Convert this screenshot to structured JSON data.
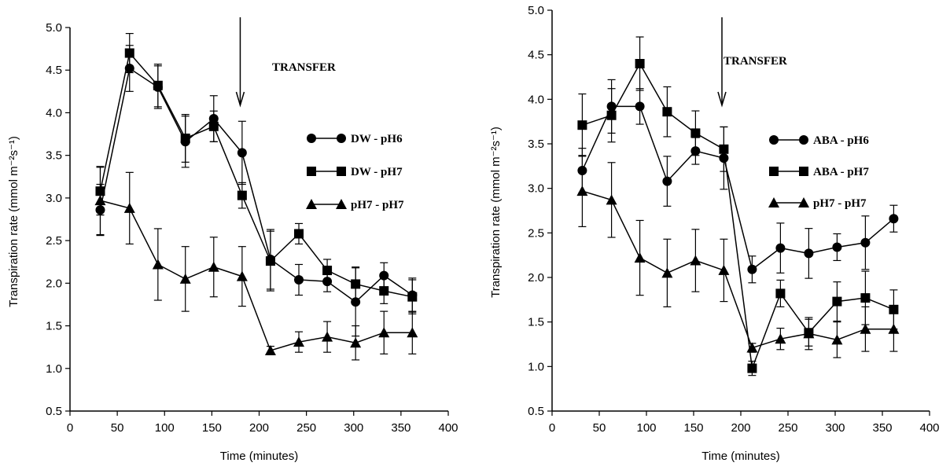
{
  "chart_data": [
    {
      "type": "line",
      "xlabel": "Time (minutes)",
      "ylabel": "Transpiration rate (mmol m⁻²s⁻¹)",
      "xlim": [
        0,
        400
      ],
      "ylim": [
        0.5,
        5.0
      ],
      "xticks": [
        "0",
        "50",
        "100",
        "150",
        "200",
        "250",
        "300",
        "350",
        "400"
      ],
      "yticks": [
        "0.5",
        "1.0",
        "1.5",
        "2.0",
        "2.5",
        "3.0",
        "3.5",
        "4.0",
        "4.5",
        "5.0"
      ],
      "annotation": {
        "text": "TRANSFER",
        "arrow_x": 180
      },
      "legend_position": "right",
      "x": [
        32,
        63,
        93,
        122,
        152,
        182,
        212,
        242,
        272,
        302,
        332,
        362
      ],
      "series": [
        {
          "name": "DW - pH6",
          "marker": "circle",
          "values": [
            2.86,
            4.52,
            4.3,
            3.66,
            3.93,
            3.53,
            2.28,
            2.04,
            2.02,
            1.78,
            2.09,
            1.86
          ],
          "errors": [
            0.3,
            0.27,
            0.25,
            0.3,
            0.27,
            0.37,
            0.35,
            0.18,
            0.12,
            0.4,
            0.15,
            0.2
          ]
        },
        {
          "name": "DW - pH7",
          "marker": "square",
          "values": [
            3.08,
            4.7,
            4.32,
            3.7,
            3.84,
            3.03,
            2.26,
            2.58,
            2.15,
            1.99,
            1.91,
            1.84
          ],
          "errors": [
            0.28,
            0.23,
            0.25,
            0.28,
            0.18,
            0.15,
            0.35,
            0.12,
            0.13,
            0.2,
            0.15,
            0.2
          ]
        },
        {
          "name": "pH7 - pH7",
          "marker": "triangle",
          "values": [
            2.97,
            2.88,
            2.22,
            2.05,
            2.19,
            2.08,
            1.21,
            1.31,
            1.37,
            1.3,
            1.42,
            1.42
          ],
          "errors": [
            0.4,
            0.42,
            0.42,
            0.38,
            0.35,
            0.35,
            0.05,
            0.12,
            0.18,
            0.2,
            0.25,
            0.25
          ]
        }
      ]
    },
    {
      "type": "line",
      "xlabel": "Time (minutes)",
      "ylabel": "Transpiration rate (mmol m⁻²s⁻¹)",
      "xlim": [
        0,
        400
      ],
      "ylim": [
        0.5,
        5.0
      ],
      "xticks": [
        "0",
        "50",
        "100",
        "150",
        "200",
        "250",
        "300",
        "350",
        "400"
      ],
      "yticks": [
        "0.5",
        "1.0",
        "1.5",
        "2.0",
        "2.5",
        "3.0",
        "3.5",
        "4.0",
        "4.5",
        "5.0"
      ],
      "annotation": {
        "text": "TRANSFER",
        "arrow_x": 180
      },
      "legend_position": "right",
      "x": [
        32,
        63,
        93,
        122,
        152,
        182,
        212,
        242,
        272,
        302,
        332,
        362
      ],
      "series": [
        {
          "name": "ABA - pH6",
          "marker": "circle",
          "values": [
            3.2,
            3.92,
            3.92,
            3.08,
            3.42,
            3.34,
            2.09,
            2.33,
            2.27,
            2.34,
            2.39,
            2.66
          ],
          "errors": [
            0.25,
            0.3,
            0.2,
            0.28,
            0.15,
            0.35,
            0.15,
            0.28,
            0.28,
            0.15,
            0.3,
            0.15
          ]
        },
        {
          "name": "ABA - pH7",
          "marker": "square",
          "values": [
            3.71,
            3.82,
            4.4,
            3.86,
            3.62,
            3.44,
            0.98,
            1.82,
            1.38,
            1.73,
            1.77,
            1.64
          ],
          "errors": [
            0.35,
            0.3,
            0.3,
            0.28,
            0.25,
            0.25,
            0.08,
            0.15,
            0.15,
            0.22,
            0.3,
            0.22
          ]
        },
        {
          "name": "pH7 - pH7",
          "marker": "triangle",
          "values": [
            2.97,
            2.87,
            2.22,
            2.05,
            2.19,
            2.08,
            1.21,
            1.31,
            1.37,
            1.3,
            1.42,
            1.42
          ],
          "errors": [
            0.4,
            0.42,
            0.42,
            0.38,
            0.35,
            0.35,
            0.05,
            0.12,
            0.18,
            0.2,
            0.25,
            0.25
          ]
        }
      ]
    }
  ]
}
